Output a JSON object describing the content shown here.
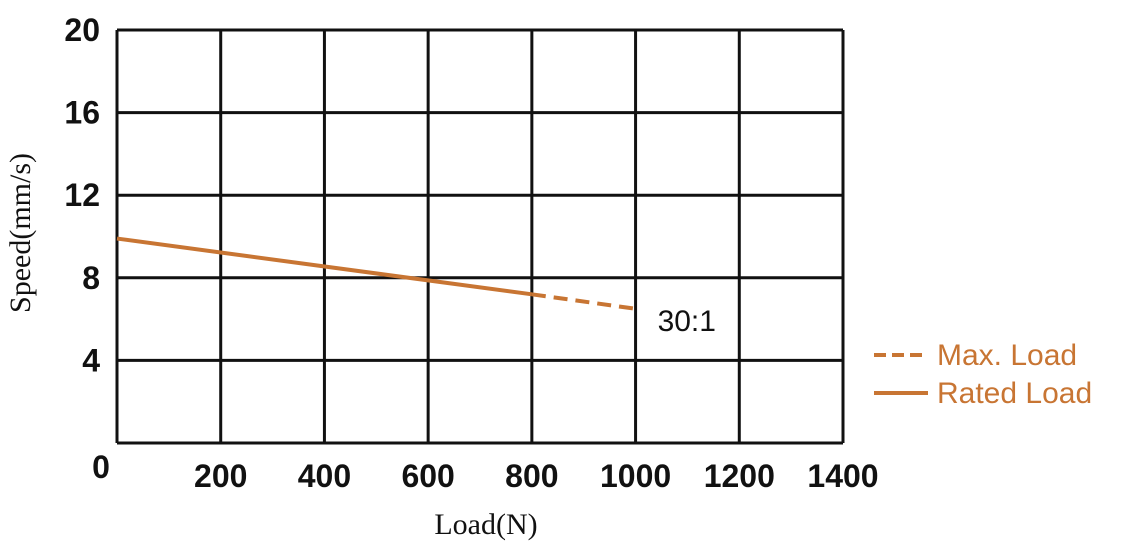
{
  "chart_data": {
    "type": "line",
    "title": "",
    "xlabel": "Load(N)",
    "ylabel": "Speed(mm/s)",
    "xlim": [
      0,
      1400
    ],
    "ylim": [
      0,
      20
    ],
    "x_ticks": [
      "0",
      "200",
      "400",
      "600",
      "800",
      "1000",
      "1200",
      "1400"
    ],
    "y_ticks": [
      "4",
      "8",
      "12",
      "16",
      "20"
    ],
    "grid": true,
    "legend_position": "right",
    "series": [
      {
        "name": "Rated Load",
        "style": "solid",
        "color": "#c87533",
        "x": [
          0,
          800
        ],
        "y": [
          9.9,
          7.2
        ]
      },
      {
        "name": "Max. Load",
        "style": "dashed",
        "color": "#c87533",
        "x": [
          800,
          1000
        ],
        "y": [
          7.2,
          6.5
        ]
      }
    ],
    "annotations": [
      {
        "text": "30:1",
        "x": 1000,
        "y": 6.5
      }
    ]
  }
}
